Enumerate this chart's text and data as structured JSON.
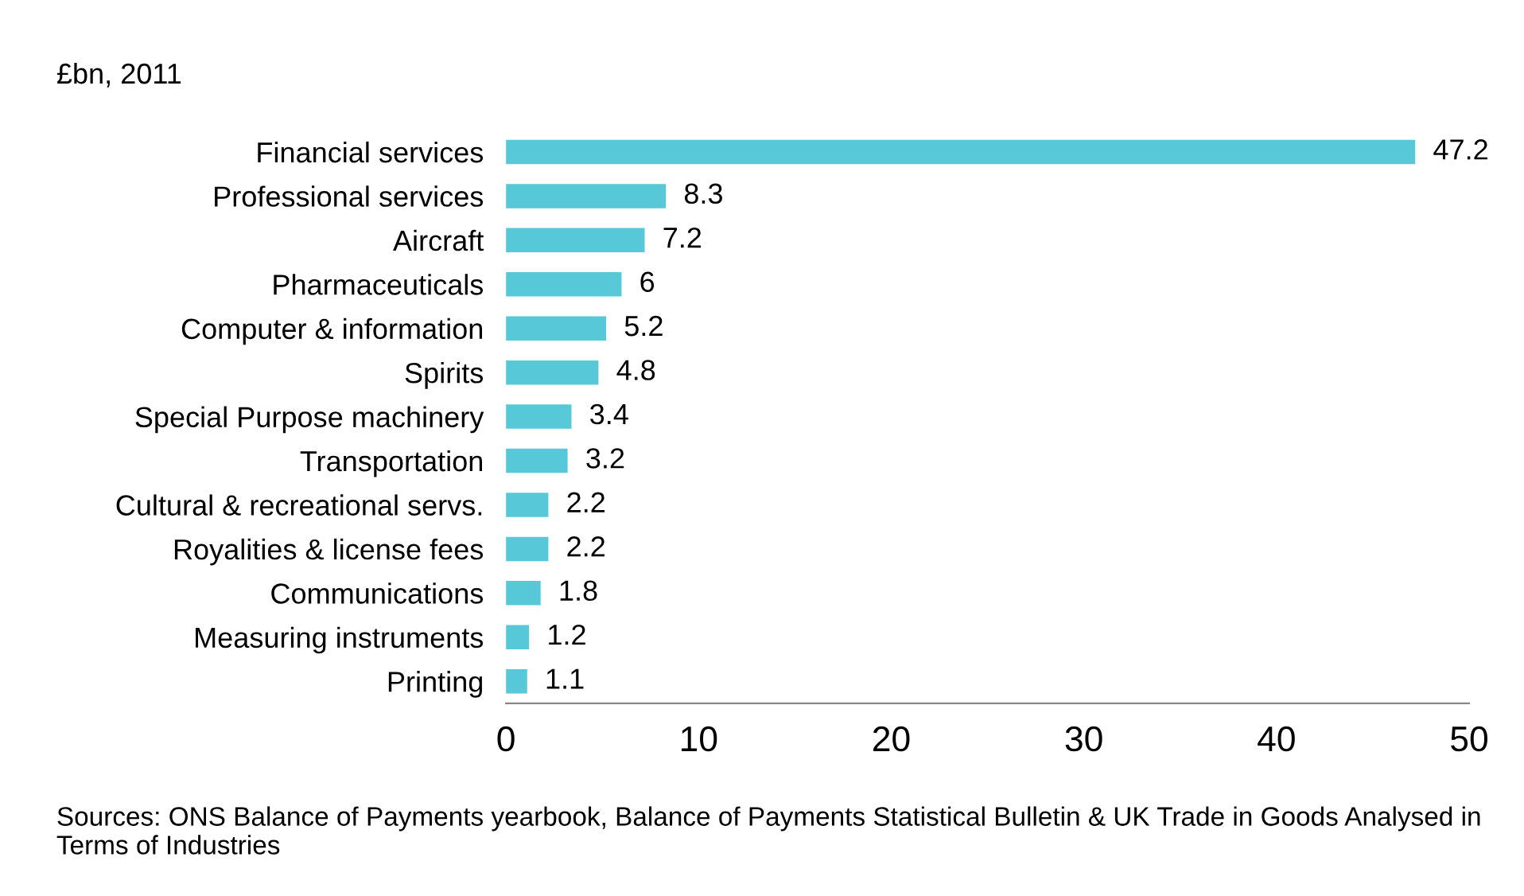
{
  "chart_data": {
    "type": "bar",
    "orientation": "horizontal",
    "ylabel": "£bn, 2011",
    "categories": [
      "Financial services",
      "Professional services",
      "Aircraft",
      "Pharmaceuticals",
      "Computer & information",
      "Spirits",
      "Special Purpose machinery",
      "Transportation",
      "Cultural & recreational servs.",
      "Royalities & license fees",
      "Communications",
      "Measuring instruments",
      "Printing"
    ],
    "values": [
      47.2,
      8.3,
      7.2,
      6,
      5.2,
      4.8,
      3.4,
      3.2,
      2.2,
      2.2,
      1.8,
      1.2,
      1.1
    ],
    "color": "#56c8d8",
    "data_labels": true,
    "xlim": [
      0,
      50
    ],
    "xticks": [
      0,
      10,
      20,
      30,
      40,
      50
    ],
    "grid": false,
    "legend": false,
    "annotations": [
      "Sources: ONS Balance of Payments yearbook, Balance of Payments Statistical Bulletin & UK Trade in Goods Analysed in Terms of Industries"
    ]
  }
}
